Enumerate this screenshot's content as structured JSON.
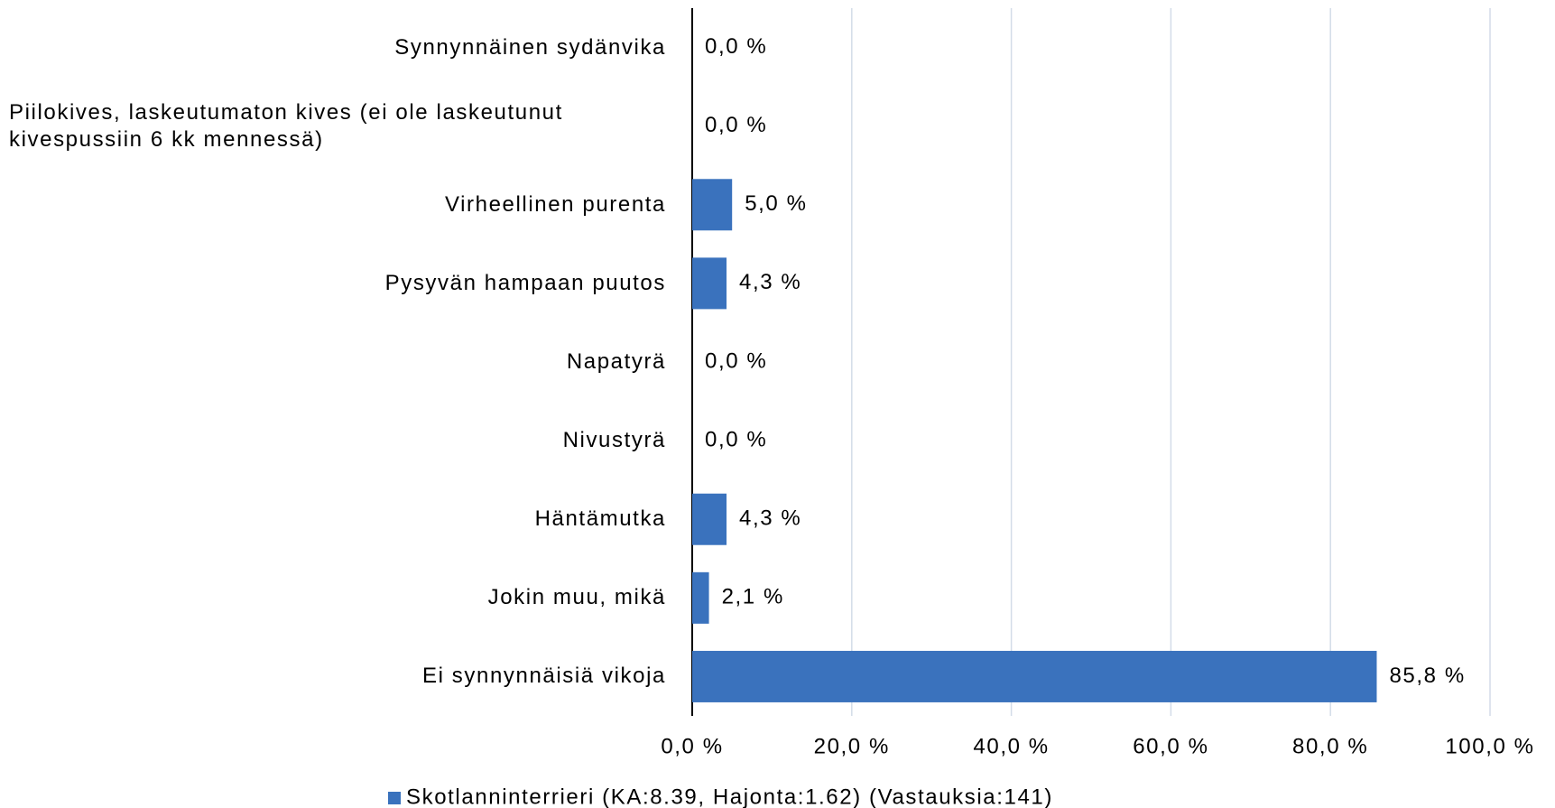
{
  "chart_data": {
    "type": "bar",
    "orientation": "horizontal",
    "categories": [
      "Synnynnäinen sydänvika",
      "Piilokives, laskeutumaton kives (ei ole laskeutunut kivespussiin 6 kk mennessä)",
      "Virheellinen purenta",
      "Pysyvän hampaan puutos",
      "Napatyrä",
      "Nivustyrä",
      "Häntämutka",
      "Jokin muu, mikä",
      "Ei synnynnäisiä vikoja"
    ],
    "series": [
      {
        "name": "Skotlanninterrieri (KA:8.39, Hajonta:1.62) (Vastauksia:141)",
        "color": "#3a72bd",
        "values": [
          0.0,
          0.0,
          5.0,
          4.3,
          0.0,
          0.0,
          4.3,
          2.1,
          85.8
        ],
        "value_labels": [
          "0,0 %",
          "0,0 %",
          "5,0 %",
          "4,3 %",
          "0,0 %",
          "0,0 %",
          "4,3 %",
          "2,1 %",
          "85,8 %"
        ]
      }
    ],
    "xlim": [
      0,
      100
    ],
    "xticks": [
      {
        "value": 0,
        "label": "0,0 %"
      },
      {
        "value": 20,
        "label": "20,0 %"
      },
      {
        "value": 40,
        "label": "40,0 %"
      },
      {
        "value": 60,
        "label": "60,0 %"
      },
      {
        "value": 80,
        "label": "80,0 %"
      },
      {
        "value": 100,
        "label": "100,0 %"
      }
    ],
    "grid": true,
    "legend": "bottom"
  }
}
